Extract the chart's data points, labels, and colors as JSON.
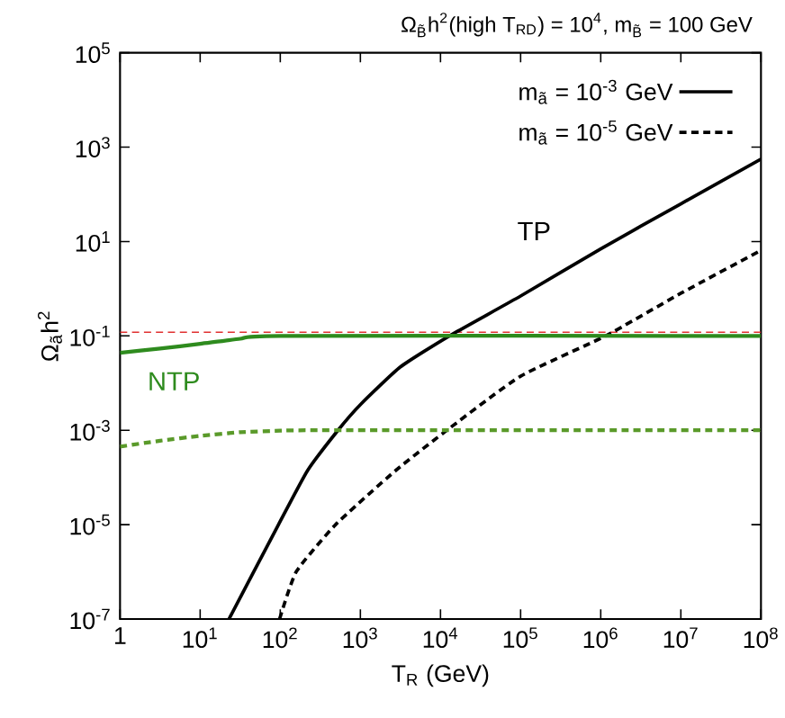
{
  "chart_data": {
    "type": "line",
    "title": "Ω$_{B̃}$h$^{2}$(high T$_{RD}$) = 10$^{4}$,   m$_{B̃}$ = 100 GeV",
    "xlabel": "T$_{R}$ (GeV)",
    "ylabel": "Ω$_{ã}$h$^{2}$",
    "log": "xy",
    "legend": "top right",
    "grid": false,
    "xlim": [
      1,
      100000000
    ],
    "ylim": [
      1e-07,
      100000
    ],
    "xticks": [
      {
        "value": 1,
        "label": "1"
      },
      {
        "value": 10,
        "label": "10$^{1}$"
      },
      {
        "value": 100,
        "label": "10$^{2}$"
      },
      {
        "value": 1000,
        "label": "10$^{3}$"
      },
      {
        "value": 10000,
        "label": "10$^{4}$"
      },
      {
        "value": 100000,
        "label": "10$^{5}$"
      },
      {
        "value": 1000000,
        "label": "10$^{6}$"
      },
      {
        "value": 10000000,
        "label": "10$^{7}$"
      },
      {
        "value": 100000000,
        "label": "10$^{8}$"
      }
    ],
    "yticks": [
      {
        "value": 1e-07,
        "label": "10$^{-7}$"
      },
      {
        "value": 1e-05,
        "label": "10$^{-5}$"
      },
      {
        "value": 0.001,
        "label": "10$^{-3}$"
      },
      {
        "value": 0.1,
        "label": "10$^{-1}$"
      },
      {
        "value": 10,
        "label": "10$^{1}$"
      },
      {
        "value": 1000,
        "label": "10$^{3}$"
      },
      {
        "value": 100000,
        "label": "10$^{5}$"
      }
    ],
    "series": [
      {
        "name": "m$_{ã}$ = 10$^{-3}$ GeV",
        "color": "#000000",
        "line_style": "solid",
        "x": [
          22.9,
          95,
          219,
          525,
          1000,
          3160,
          12900,
          100000,
          1000000,
          10000000,
          100000000
        ],
        "values": [
          1e-07,
          1e-05,
          0.00014,
          0.001,
          0.0035,
          0.022,
          0.1,
          0.7,
          7,
          63,
          560
        ]
      },
      {
        "name": "m$_{ã}$ = 10$^{-5}$ GeV",
        "color": "#000000",
        "line_style": "dashed",
        "x": [
          98,
          158,
          490,
          2750,
          12900,
          100000,
          1150000,
          10000000,
          100000000
        ],
        "values": [
          1e-07,
          1e-06,
          1e-05,
          0.00014,
          0.0011,
          0.014,
          0.1,
          0.8,
          6.5
        ]
      },
      {
        "color": "#2e8b1e",
        "line_style": "solid",
        "x": [
          1,
          3.16,
          10,
          31.6,
          100,
          100000000
        ],
        "values": [
          0.044,
          0.054,
          0.068,
          0.087,
          0.1,
          0.1
        ]
      },
      {
        "color": "#5a9a2a",
        "line_style": "dashed",
        "x": [
          1,
          3.16,
          10,
          31.6,
          100,
          316,
          100000000
        ],
        "values": [
          0.00045,
          0.0006,
          0.00076,
          0.00091,
          0.00098,
          0.001,
          0.001
        ]
      }
    ],
    "ref_lines": [
      {
        "axis": "y",
        "value": 0.12,
        "color": "#e03030",
        "line_style": "dashed"
      }
    ],
    "annotations": [
      "TP",
      "NTP"
    ]
  }
}
